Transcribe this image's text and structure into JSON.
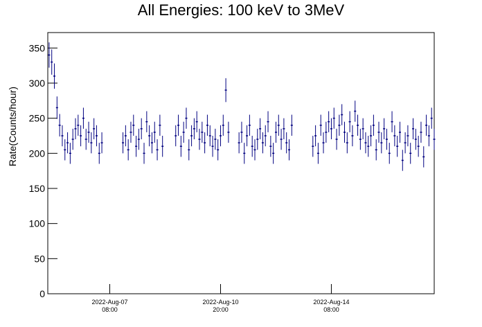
{
  "chart_data": {
    "type": "errorbar",
    "title": "All Energies:  100 keV to 3MeV",
    "y_label": "Rate(Counts/hour)",
    "xlim": [
      0,
      293
    ],
    "ylim": [
      0,
      372
    ],
    "xticks": [
      {
        "value": 47,
        "label": "2022-Aug-07\n08:00"
      },
      {
        "value": 131,
        "label": "2022-Aug-10\n20:00"
      },
      {
        "value": 215,
        "label": "2022-Aug-14\n08:00"
      }
    ],
    "yticks": [
      0,
      50,
      100,
      150,
      200,
      250,
      300,
      350
    ],
    "series": [
      {
        "color": "#000080",
        "x": [
          1,
          3,
          5,
          7,
          9,
          11,
          13,
          15,
          17,
          19,
          21,
          23,
          25,
          27,
          29,
          31,
          33,
          35,
          37,
          39,
          41,
          57,
          59,
          61,
          63,
          65,
          67,
          69,
          71,
          73,
          75,
          77,
          79,
          81,
          83,
          85,
          87,
          97,
          99,
          101,
          103,
          105,
          107,
          109,
          111,
          113,
          115,
          117,
          119,
          121,
          123,
          125,
          127,
          129,
          131,
          133,
          135,
          137,
          145,
          147,
          149,
          151,
          153,
          155,
          157,
          159,
          161,
          163,
          165,
          167,
          169,
          171,
          173,
          175,
          177,
          179,
          181,
          183,
          185,
          201,
          203,
          205,
          207,
          209,
          211,
          213,
          215,
          217,
          219,
          221,
          223,
          225,
          227,
          229,
          231,
          233,
          235,
          237,
          239,
          241,
          243,
          245,
          247,
          249,
          251,
          253,
          255,
          257,
          259,
          261,
          263,
          265,
          267,
          269,
          271,
          273,
          275,
          277,
          279,
          281,
          283,
          285,
          287,
          289,
          291,
          293
        ],
        "values": [
          340,
          330,
          310,
          265,
          240,
          225,
          205,
          215,
          200,
          220,
          235,
          240,
          225,
          250,
          220,
          230,
          215,
          235,
          225,
          200,
          215,
          215,
          225,
          205,
          230,
          240,
          210,
          220,
          235,
          200,
          245,
          225,
          215,
          230,
          205,
          240,
          210,
          225,
          240,
          210,
          230,
          250,
          205,
          225,
          235,
          245,
          220,
          230,
          215,
          240,
          225,
          210,
          220,
          205,
          225,
          240,
          290,
          230,
          215,
          230,
          200,
          225,
          240,
          210,
          205,
          220,
          235,
          215,
          225,
          245,
          210,
          200,
          230,
          240,
          220,
          235,
          215,
          205,
          240,
          210,
          225,
          200,
          240,
          215,
          230,
          245,
          235,
          250,
          220,
          240,
          255,
          230,
          215,
          245,
          225,
          260,
          240,
          220,
          235,
          215,
          210,
          225,
          240,
          205,
          230,
          215,
          235,
          220,
          200,
          245,
          225,
          210,
          230,
          190,
          215,
          225,
          200,
          235,
          220,
          210,
          230,
          195,
          240,
          225,
          250,
          220
        ],
        "errors": [
          18,
          18,
          18,
          16,
          16,
          15,
          15,
          15,
          15,
          15,
          15,
          15,
          15,
          15,
          15,
          15,
          15,
          15,
          15,
          15,
          15,
          15,
          15,
          15,
          15,
          15,
          15,
          15,
          15,
          15,
          15,
          15,
          15,
          15,
          15,
          15,
          15,
          15,
          15,
          15,
          15,
          15,
          15,
          15,
          15,
          15,
          15,
          15,
          15,
          15,
          15,
          15,
          15,
          15,
          15,
          15,
          17,
          15,
          15,
          15,
          15,
          15,
          15,
          15,
          15,
          15,
          15,
          15,
          15,
          15,
          15,
          15,
          15,
          15,
          15,
          15,
          15,
          15,
          15,
          15,
          15,
          15,
          15,
          15,
          15,
          15,
          15,
          15,
          15,
          15,
          15,
          15,
          15,
          15,
          15,
          15,
          15,
          15,
          15,
          15,
          15,
          15,
          15,
          15,
          15,
          15,
          15,
          15,
          15,
          15,
          15,
          15,
          15,
          15,
          15,
          15,
          15,
          15,
          15,
          15,
          15,
          15,
          15,
          15,
          15,
          15
        ]
      }
    ]
  }
}
